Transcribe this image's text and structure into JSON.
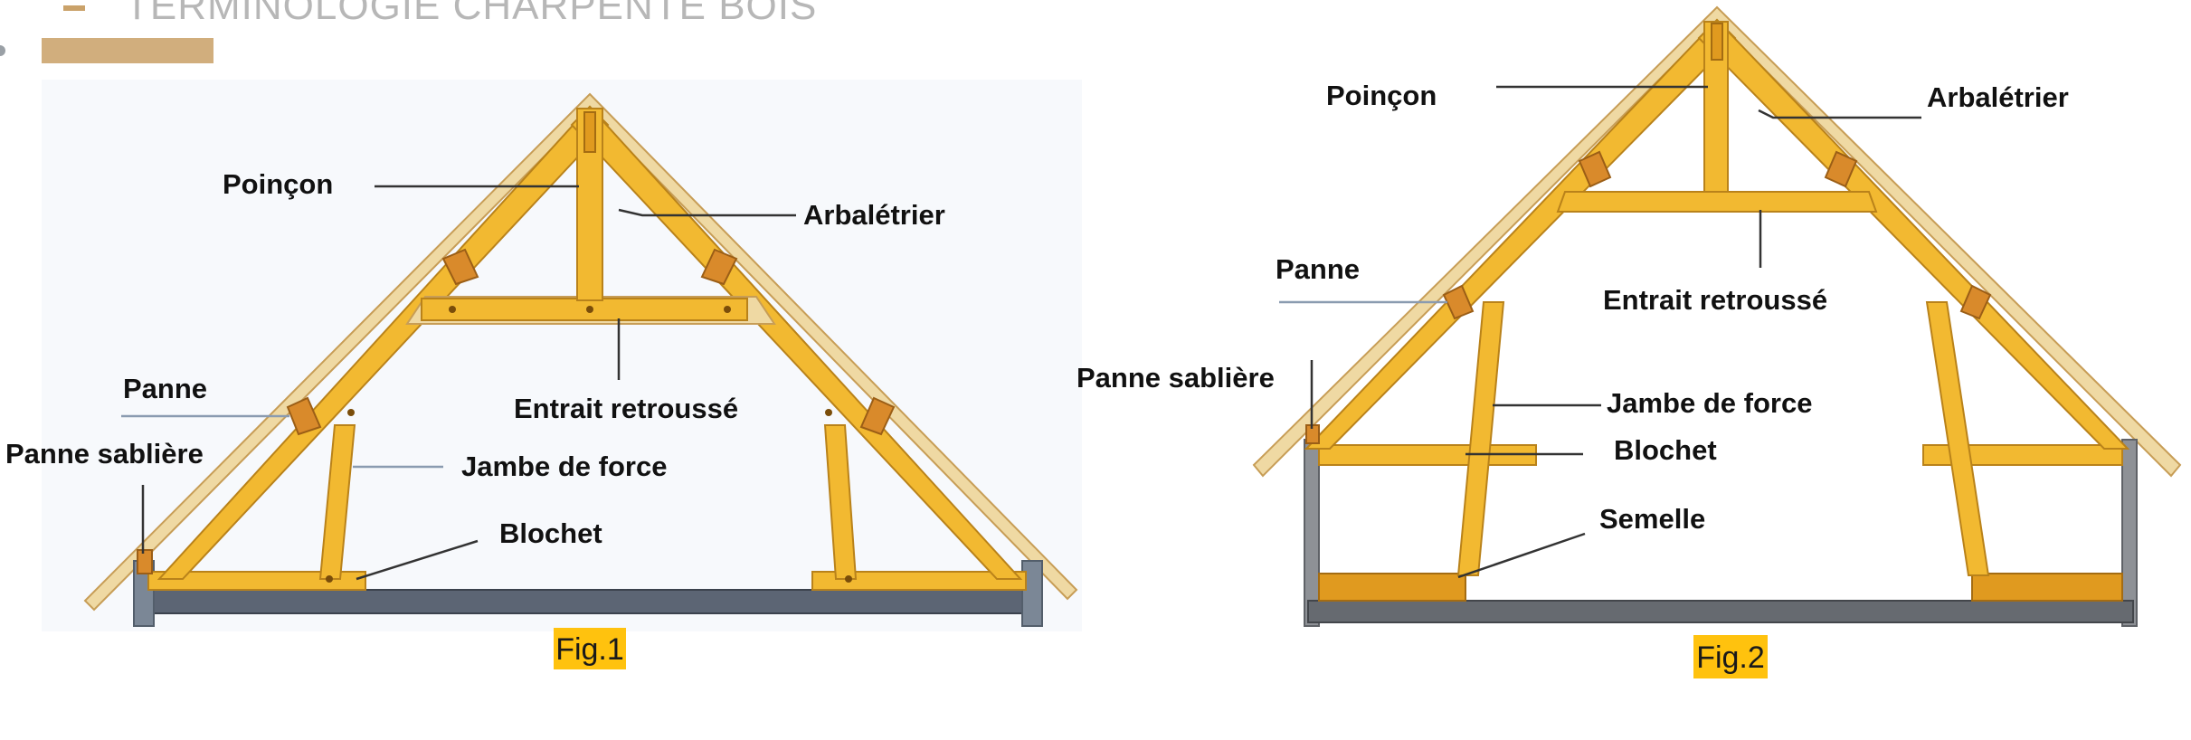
{
  "header": {
    "title": "TERMINOLOGIE CHARPENTE BOIS"
  },
  "fig1": {
    "caption": "Fig.1",
    "labels": {
      "poincon": "Poinçon",
      "arbaletrier": "Arbalétrier",
      "entrait": "Entrait retroussé",
      "panne": "Panne",
      "sabliere": "Panne sablière",
      "jambe": "Jambe de force",
      "blochet": "Blochet"
    }
  },
  "fig2": {
    "caption": "Fig.2",
    "labels": {
      "poincon": "Poinçon",
      "arbaletrier": "Arbalétrier",
      "entrait": "Entrait retroussé",
      "panne": "Panne",
      "sabliere": "Panne sablière",
      "jambe": "Jambe de force",
      "blochet": "Blochet",
      "semelle": "Semelle"
    }
  },
  "colors": {
    "wood": "#f2b931",
    "caption_highlight": "#ffc20e",
    "header_accent": "#d1ae7d",
    "header_text": "#b7b7b7"
  }
}
